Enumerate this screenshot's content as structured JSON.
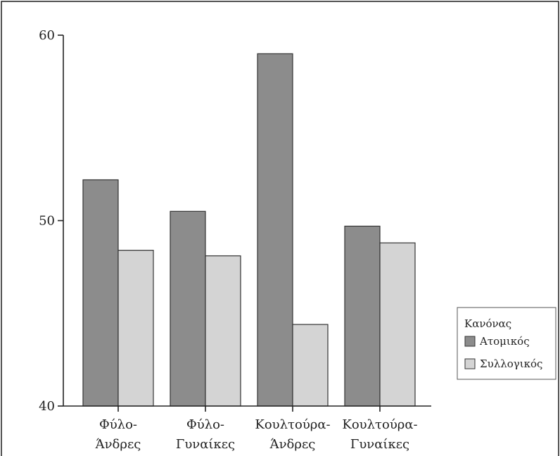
{
  "chart_data": {
    "type": "bar",
    "categories": [
      [
        "Φύλο-",
        "Άνδρες"
      ],
      [
        "Φύλο-",
        "Γυναίκες"
      ],
      [
        "Κουλτούρα-",
        "Άνδρες"
      ],
      [
        "Κουλτούρα-",
        "Γυναίκες"
      ]
    ],
    "series": [
      {
        "name": "Ατομικός",
        "values": [
          52.2,
          50.5,
          59.0,
          49.7
        ],
        "color": "#8c8c8c"
      },
      {
        "name": "Συλλογικός",
        "values": [
          48.4,
          48.1,
          44.4,
          48.8
        ],
        "color": "#d4d4d4"
      }
    ],
    "ylim": [
      40,
      60
    ],
    "yticks": [
      40,
      50,
      60
    ],
    "title": "",
    "xlabel": "",
    "ylabel": "",
    "grid": false,
    "legend": {
      "title": "Κανόνας",
      "placement": "right"
    }
  }
}
